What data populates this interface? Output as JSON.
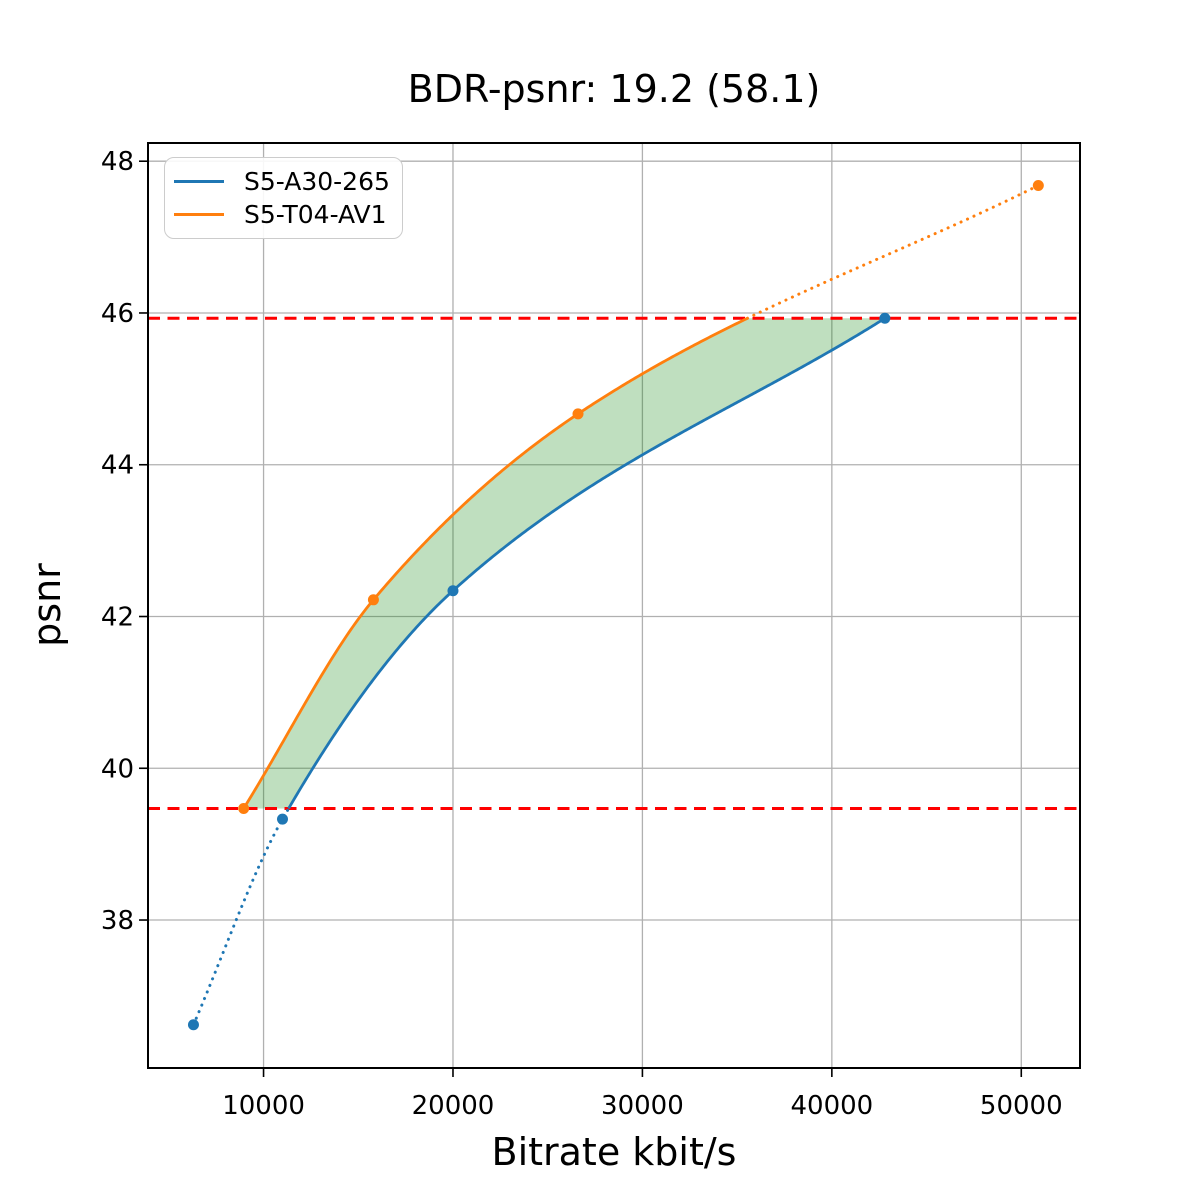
{
  "figure": {
    "title": "BDR-psnr: 19.2 (58.1)",
    "xlabel": "Bitrate kbit/s",
    "ylabel": "psnr"
  },
  "legend": {
    "position": "upper left",
    "items": [
      {
        "label": "S5-A30-265",
        "color": "#1f77b4"
      },
      {
        "label": "S5-T04-AV1",
        "color": "#ff7f0e"
      }
    ]
  },
  "chart_data": {
    "type": "line",
    "title": "BDR-psnr: 19.2 (58.1)",
    "xlabel": "Bitrate kbit/s",
    "ylabel": "psnr",
    "xlim": [
      3900,
      53100
    ],
    "ylim": [
      36.05,
      48.24
    ],
    "xticks": [
      10000,
      20000,
      30000,
      40000,
      50000
    ],
    "yticks": [
      38,
      40,
      42,
      44,
      46,
      48
    ],
    "grid": true,
    "grid_color": "#b0b0b0",
    "legend_position": "upper left",
    "series": [
      {
        "name": "S5-A30-265",
        "color": "#1f77b4",
        "x": [
          6300,
          11000,
          20000,
          42800
        ],
        "y": [
          36.62,
          39.33,
          42.34,
          45.93
        ],
        "note": "dotted below lower reference line, solid inside overlap interval"
      },
      {
        "name": "S5-T04-AV1",
        "color": "#ff7f0e",
        "x": [
          8950,
          15800,
          26600,
          50900
        ],
        "y": [
          39.47,
          42.22,
          44.67,
          47.68
        ],
        "note": "solid inside overlap interval, dotted above upper reference line"
      }
    ],
    "reference_lines": [
      {
        "axis": "y",
        "value": 39.47,
        "style": "dashed",
        "color": "#ff0000"
      },
      {
        "axis": "y",
        "value": 45.93,
        "style": "dashed",
        "color": "#ff0000"
      }
    ],
    "shaded_region": {
      "between": [
        "S5-T04-AV1",
        "S5-A30-265"
      ],
      "psnr_range": [
        39.47,
        45.93
      ],
      "color": "#008000",
      "alpha": 0.25
    },
    "bd_metrics": {
      "bdr_psnr": 19.2,
      "bdr_psnr_alt": 58.1
    }
  }
}
